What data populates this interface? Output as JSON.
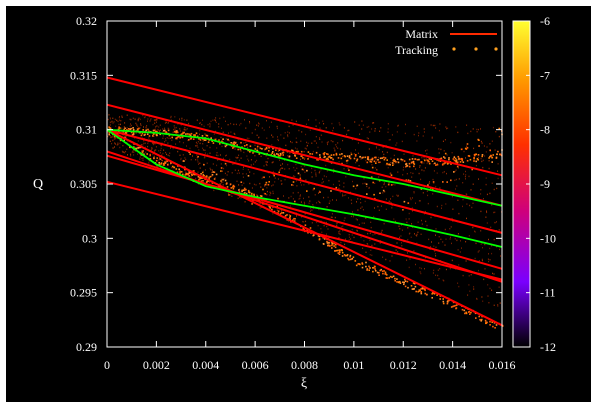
{
  "chart_data": {
    "type": "scatter",
    "title": "",
    "xlabel": "ξ",
    "ylabel": "Q",
    "xlim": [
      0,
      0.016
    ],
    "ylim": [
      0.29,
      0.32
    ],
    "x_ticks": [
      "0",
      "0.002",
      "0.004",
      "0.006",
      "0.008",
      "0.01",
      "0.012",
      "0.014",
      "0.016"
    ],
    "y_ticks": [
      "0.29",
      "0.295",
      "0.3",
      "0.305",
      "0.31",
      "0.315",
      "0.32"
    ],
    "grid": false,
    "legend_position": "top-right",
    "legend": [
      {
        "name": "Matrix",
        "color": "#ff0000",
        "style": "line"
      },
      {
        "name": "Tracking",
        "color": "#ffa020",
        "style": "points"
      }
    ],
    "colorbar": {
      "range": [
        -12,
        -6
      ],
      "ticks": [
        "-6",
        "-7",
        "-8",
        "-9",
        "-10",
        "-11",
        "-12"
      ],
      "palette": [
        "#000000",
        "#7a00ff",
        "#d0007a",
        "#ff3000",
        "#ff9a00",
        "#ffff30"
      ]
    },
    "matrix_lines": [
      {
        "x": [
          0,
          0.016
        ],
        "y": [
          0.3148,
          0.3058
        ],
        "color": "#ff0000"
      },
      {
        "x": [
          0,
          0.016
        ],
        "y": [
          0.3123,
          0.303
        ],
        "color": "#ff0000"
      },
      {
        "x": [
          0,
          0.016
        ],
        "y": [
          0.31,
          0.3005
        ],
        "color": "#ff0000"
      },
      {
        "x": [
          0,
          0.016
        ],
        "y": [
          0.3076,
          0.2972
        ],
        "color": "#ff0000"
      },
      {
        "x": [
          0,
          0.016
        ],
        "y": [
          0.3052,
          0.2962
        ],
        "color": "#ff0000"
      },
      {
        "x": [
          0,
          0.016
        ],
        "y": [
          0.31,
          0.292
        ],
        "color": "#ff0000"
      },
      {
        "x": [
          0,
          0.016
        ],
        "y": [
          0.308,
          0.296
        ],
        "color": "#ff0000"
      }
    ],
    "green_lines": [
      {
        "x": [
          0,
          0.002,
          0.004,
          0.006,
          0.008,
          0.01,
          0.012,
          0.014,
          0.016
        ],
        "y": [
          0.31,
          0.3097,
          0.3092,
          0.308,
          0.3068,
          0.3058,
          0.305,
          0.304,
          0.303
        ],
        "color": "#00ff00"
      },
      {
        "x": [
          0,
          0.002,
          0.004,
          0.006,
          0.008,
          0.01,
          0.012,
          0.014,
          0.016
        ],
        "y": [
          0.31,
          0.3068,
          0.3048,
          0.3038,
          0.303,
          0.3022,
          0.3013,
          0.3003,
          0.2992
        ],
        "color": "#00ff00"
      }
    ],
    "tracking_bands": [
      {
        "x": [
          0,
          0.002,
          0.004,
          0.006,
          0.008,
          0.01,
          0.012,
          0.014,
          0.016
        ],
        "y": [
          0.31,
          0.3098,
          0.3093,
          0.3082,
          0.3077,
          0.3075,
          0.307,
          0.3072,
          0.3078
        ]
      },
      {
        "x": [
          0,
          0.002,
          0.004,
          0.006,
          0.008,
          0.01,
          0.012,
          0.014,
          0.016
        ],
        "y": [
          0.31,
          0.3072,
          0.3055,
          0.304,
          0.301,
          0.298,
          0.296,
          0.294,
          0.2918
        ]
      },
      {
        "x": [
          0.003,
          0.006,
          0.008,
          0.01,
          0.012,
          0.014,
          0.016
        ],
        "y": [
          0.307,
          0.3045,
          0.305,
          0.306,
          0.304,
          0.307,
          0.309
        ]
      }
    ]
  }
}
